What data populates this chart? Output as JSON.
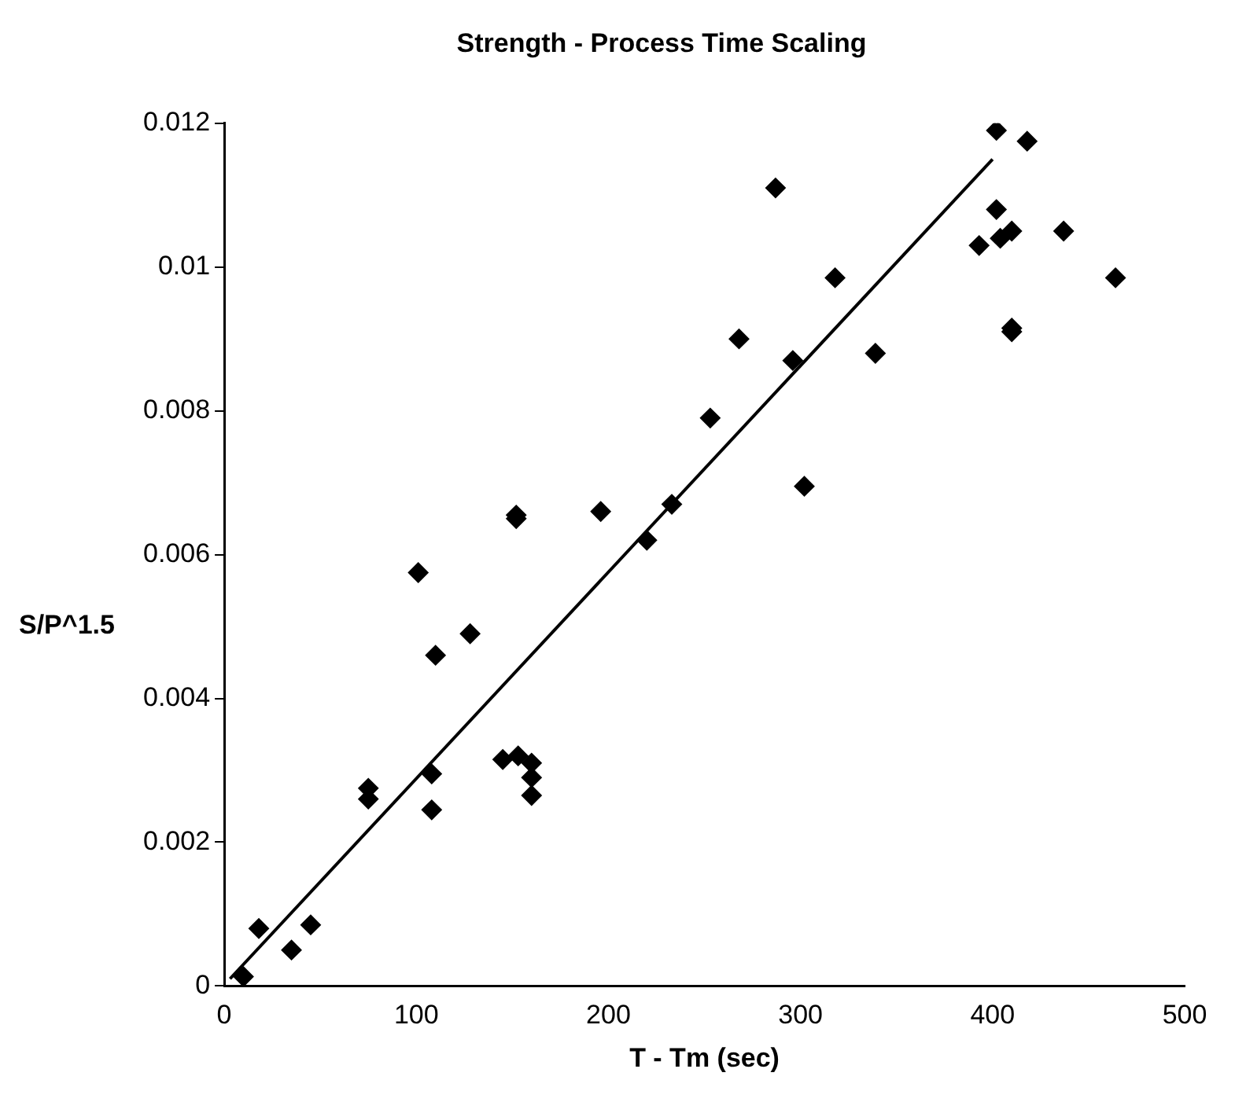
{
  "chart_data": {
    "type": "scatter",
    "title": "Strength - Process Time Scaling",
    "xlabel": "T - Tm (sec)",
    "ylabel": "S/P^1.5",
    "xlim": [
      0,
      500
    ],
    "xticks": [
      0,
      100,
      200,
      300,
      400,
      500
    ],
    "ylim": [
      0,
      0.012
    ],
    "yticks": [
      0,
      0.002,
      0.004,
      0.006,
      0.008,
      0.01,
      0.012
    ],
    "grid": false,
    "legend": false,
    "marker": "diamond",
    "series": [
      {
        "color": "#000000",
        "x": [
          10,
          18,
          35,
          45,
          75,
          75,
          108,
          108,
          101,
          110,
          128,
          145,
          153,
          152,
          152,
          160,
          160,
          160,
          196,
          220,
          233,
          253,
          268,
          287,
          296,
          302,
          318,
          339,
          393,
          402,
          402,
          404,
          410,
          410,
          410,
          418,
          437,
          464
        ],
        "values": [
          0.00013,
          0.0008,
          0.0005,
          0.00085,
          0.00275,
          0.0026,
          0.00295,
          0.00245,
          0.00575,
          0.0046,
          0.0049,
          0.00315,
          0.0032,
          0.0065,
          0.00655,
          0.0031,
          0.0029,
          0.00265,
          0.0066,
          0.0062,
          0.0067,
          0.0079,
          0.009,
          0.0111,
          0.0087,
          0.00695,
          0.00985,
          0.0088,
          0.0103,
          0.0119,
          0.0108,
          0.0104,
          0.0105,
          0.0091,
          0.00915,
          0.01175,
          0.0105,
          0.00985
        ]
      },
      {
        "type": "line",
        "marker": "none",
        "color": "#000000",
        "x": [
          3,
          400
        ],
        "values": [
          0.0001,
          0.0115
        ]
      }
    ]
  }
}
